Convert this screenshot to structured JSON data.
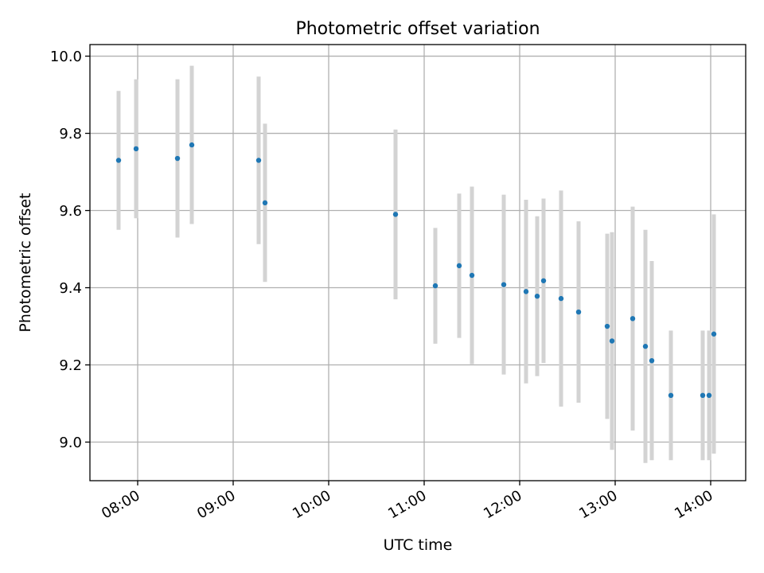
{
  "chart_data": {
    "type": "scatter",
    "title": "Photometric offset variation",
    "xlabel": "UTC time",
    "ylabel": "Photometric offset",
    "x_axis_type": "time",
    "xlim": [
      "07:30",
      "14:22"
    ],
    "ylim": [
      8.9,
      10.03
    ],
    "x_ticks": [
      "08:00",
      "09:00",
      "10:00",
      "11:00",
      "12:00",
      "13:00",
      "14:00"
    ],
    "y_ticks": [
      "9.0",
      "9.2",
      "9.4",
      "9.6",
      "9.8",
      "10.0"
    ],
    "grid": true,
    "colors": {
      "point": "#1f77b4",
      "error_bar": "#d3d3d3",
      "grid": "#b0b0b0"
    },
    "points": [
      {
        "x": "07:48",
        "y": 9.73,
        "err": 0.18
      },
      {
        "x": "07:59",
        "y": 9.76,
        "err": 0.18
      },
      {
        "x": "08:25",
        "y": 9.735,
        "err": 0.205
      },
      {
        "x": "08:34",
        "y": 9.77,
        "err": 0.205
      },
      {
        "x": "09:16",
        "y": 9.73,
        "err": 0.217
      },
      {
        "x": "09:20",
        "y": 9.62,
        "err": 0.205
      },
      {
        "x": "10:42",
        "y": 9.59,
        "err": 0.22
      },
      {
        "x": "11:07",
        "y": 9.405,
        "err": 0.15
      },
      {
        "x": "11:22",
        "y": 9.457,
        "err": 0.187
      },
      {
        "x": "11:30",
        "y": 9.432,
        "err": 0.23
      },
      {
        "x": "11:50",
        "y": 9.408,
        "err": 0.233
      },
      {
        "x": "12:04",
        "y": 9.39,
        "err": 0.238
      },
      {
        "x": "12:11",
        "y": 9.378,
        "err": 0.207
      },
      {
        "x": "12:15",
        "y": 9.418,
        "err": 0.213
      },
      {
        "x": "12:26",
        "y": 9.372,
        "err": 0.28
      },
      {
        "x": "12:37",
        "y": 9.337,
        "err": 0.235
      },
      {
        "x": "12:55",
        "y": 9.3,
        "err": 0.24
      },
      {
        "x": "12:58",
        "y": 9.262,
        "err": 0.282
      },
      {
        "x": "13:11",
        "y": 9.32,
        "err": 0.29
      },
      {
        "x": "13:19",
        "y": 9.248,
        "err": 0.302
      },
      {
        "x": "13:23",
        "y": 9.211,
        "err": 0.258
      },
      {
        "x": "13:35",
        "y": 9.121,
        "err": 0.168
      },
      {
        "x": "13:55",
        "y": 9.121,
        "err": 0.168
      },
      {
        "x": "13:59",
        "y": 9.121,
        "err": 0.168
      },
      {
        "x": "14:02",
        "y": 9.28,
        "err": 0.31
      }
    ]
  }
}
